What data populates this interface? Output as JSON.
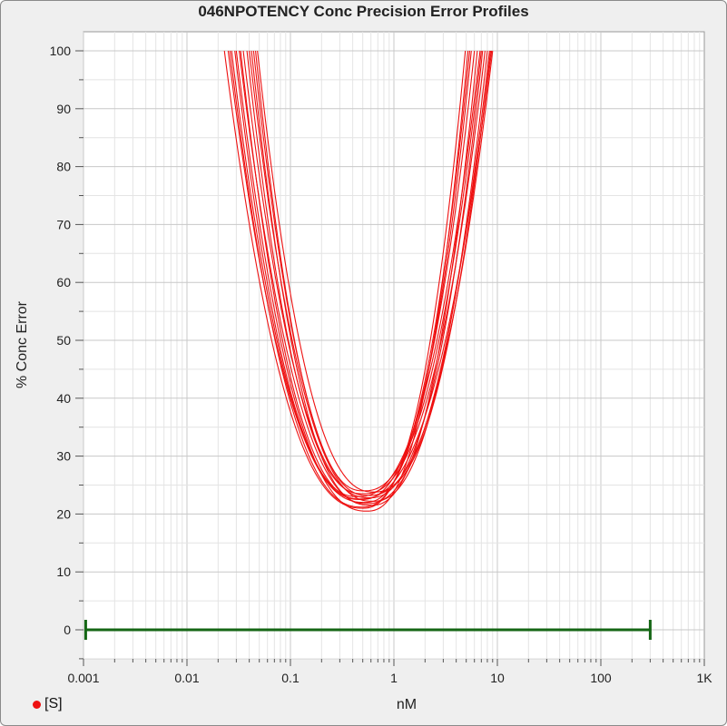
{
  "chart_data": {
    "type": "line",
    "title": "046NPOTENCY Conc Precision Error Profiles",
    "xlabel": "nM",
    "ylabel": "% Conc Error",
    "x_scale": "log",
    "xlim": [
      0.001,
      1000
    ],
    "ylim": [
      -5,
      100
    ],
    "x_ticks": [
      {
        "value": 0.001,
        "label": "0.001"
      },
      {
        "value": 0.01,
        "label": "0.01"
      },
      {
        "value": 0.1,
        "label": "0.1"
      },
      {
        "value": 1,
        "label": "1"
      },
      {
        "value": 10,
        "label": "10"
      },
      {
        "value": 100,
        "label": "100"
      },
      {
        "value": 1000,
        "label": "1K"
      }
    ],
    "y_ticks": [
      0,
      10,
      20,
      30,
      40,
      50,
      60,
      70,
      80,
      90,
      100
    ],
    "grid": true,
    "legend": {
      "position": "bottom-left",
      "label": "[S]",
      "color": "#ee1111"
    },
    "curve_color": "#ee1111",
    "series": [
      {
        "min_x": 0.5,
        "min_y": 21.0,
        "x_at_100_low": 0.023,
        "x_at_100_high": 4.9
      },
      {
        "min_x": 0.55,
        "min_y": 20.5,
        "x_at_100_low": 0.03,
        "x_at_100_high": 5.2
      },
      {
        "min_x": 0.52,
        "min_y": 22.0,
        "x_at_100_low": 0.025,
        "x_at_100_high": 5.6
      },
      {
        "min_x": 0.48,
        "min_y": 22.5,
        "x_at_100_low": 0.027,
        "x_at_100_high": 6.0
      },
      {
        "min_x": 0.6,
        "min_y": 21.5,
        "x_at_100_low": 0.032,
        "x_at_100_high": 6.4
      },
      {
        "min_x": 0.45,
        "min_y": 23.0,
        "x_at_100_low": 0.029,
        "x_at_100_high": 6.8
      },
      {
        "min_x": 0.58,
        "min_y": 22.8,
        "x_at_100_low": 0.035,
        "x_at_100_high": 7.2
      },
      {
        "min_x": 0.5,
        "min_y": 23.5,
        "x_at_100_low": 0.038,
        "x_at_100_high": 7.6
      },
      {
        "min_x": 0.62,
        "min_y": 22.2,
        "x_at_100_low": 0.04,
        "x_at_100_high": 8.0
      },
      {
        "min_x": 0.54,
        "min_y": 21.8,
        "x_at_100_low": 0.042,
        "x_at_100_high": 8.4
      },
      {
        "min_x": 0.47,
        "min_y": 22.6,
        "x_at_100_low": 0.033,
        "x_at_100_high": 8.8
      },
      {
        "min_x": 0.56,
        "min_y": 23.2,
        "x_at_100_low": 0.044,
        "x_at_100_high": 9.0
      },
      {
        "min_x": 0.51,
        "min_y": 24.0,
        "x_at_100_low": 0.046,
        "x_at_100_high": 7.0
      },
      {
        "min_x": 0.64,
        "min_y": 23.8,
        "x_at_100_low": 0.048,
        "x_at_100_high": 8.6
      },
      {
        "min_x": 0.49,
        "min_y": 21.2,
        "x_at_100_low": 0.026,
        "x_at_100_high": 5.4
      }
    ],
    "range_bar": {
      "x_start": 0.00105,
      "x_end": 300,
      "y": 0,
      "color": "#156615"
    }
  }
}
